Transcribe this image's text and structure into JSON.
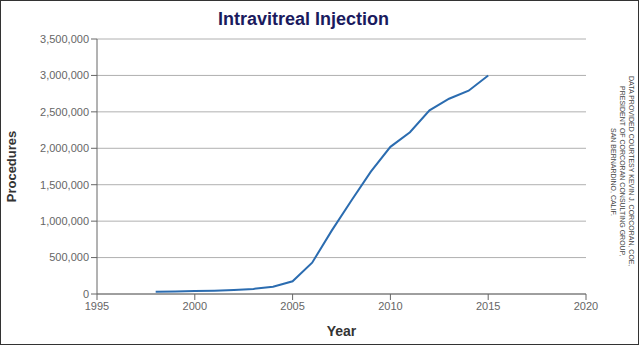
{
  "chart_data": {
    "type": "line",
    "title": "Intravitreal Injection",
    "x_label": "Year",
    "y_label": "Procedures",
    "x": [
      1998,
      1999,
      2000,
      2001,
      2002,
      2003,
      2004,
      2005,
      2006,
      2007,
      2008,
      2009,
      2010,
      2011,
      2012,
      2013,
      2014,
      2015
    ],
    "values": [
      30000,
      35000,
      40000,
      45000,
      55000,
      70000,
      100000,
      175000,
      430000,
      870000,
      1280000,
      1680000,
      2020000,
      2220000,
      2520000,
      2680000,
      2790000,
      3000000
    ],
    "color": "#2b6cb0",
    "xlim": [
      1995,
      2020
    ],
    "ylim": [
      0,
      3500000
    ],
    "xticks": [
      1995,
      2000,
      2005,
      2010,
      2015,
      2020
    ],
    "yticks": [
      0,
      {
        "value": 500000,
        "label": "500,000"
      },
      {
        "value": 1000000,
        "label": "1,000,000"
      },
      {
        "value": 1500000,
        "label": "1,500,000"
      },
      {
        "value": 2000000,
        "label": "2,000,000"
      },
      {
        "value": 2500000,
        "label": "2,500,000"
      },
      {
        "value": 3000000,
        "label": "3,000,000"
      },
      {
        "value": 3500000,
        "label": "3,500,000"
      }
    ],
    "grid": "y",
    "annotations": [
      "DATA PROVIDED COURTESY KEVIN J. CORCORAN, COE,",
      "PRESIDENT OF CORCORAN CONSULTING GROUP,",
      "SAN BERNARDINO, CALIF."
    ]
  }
}
